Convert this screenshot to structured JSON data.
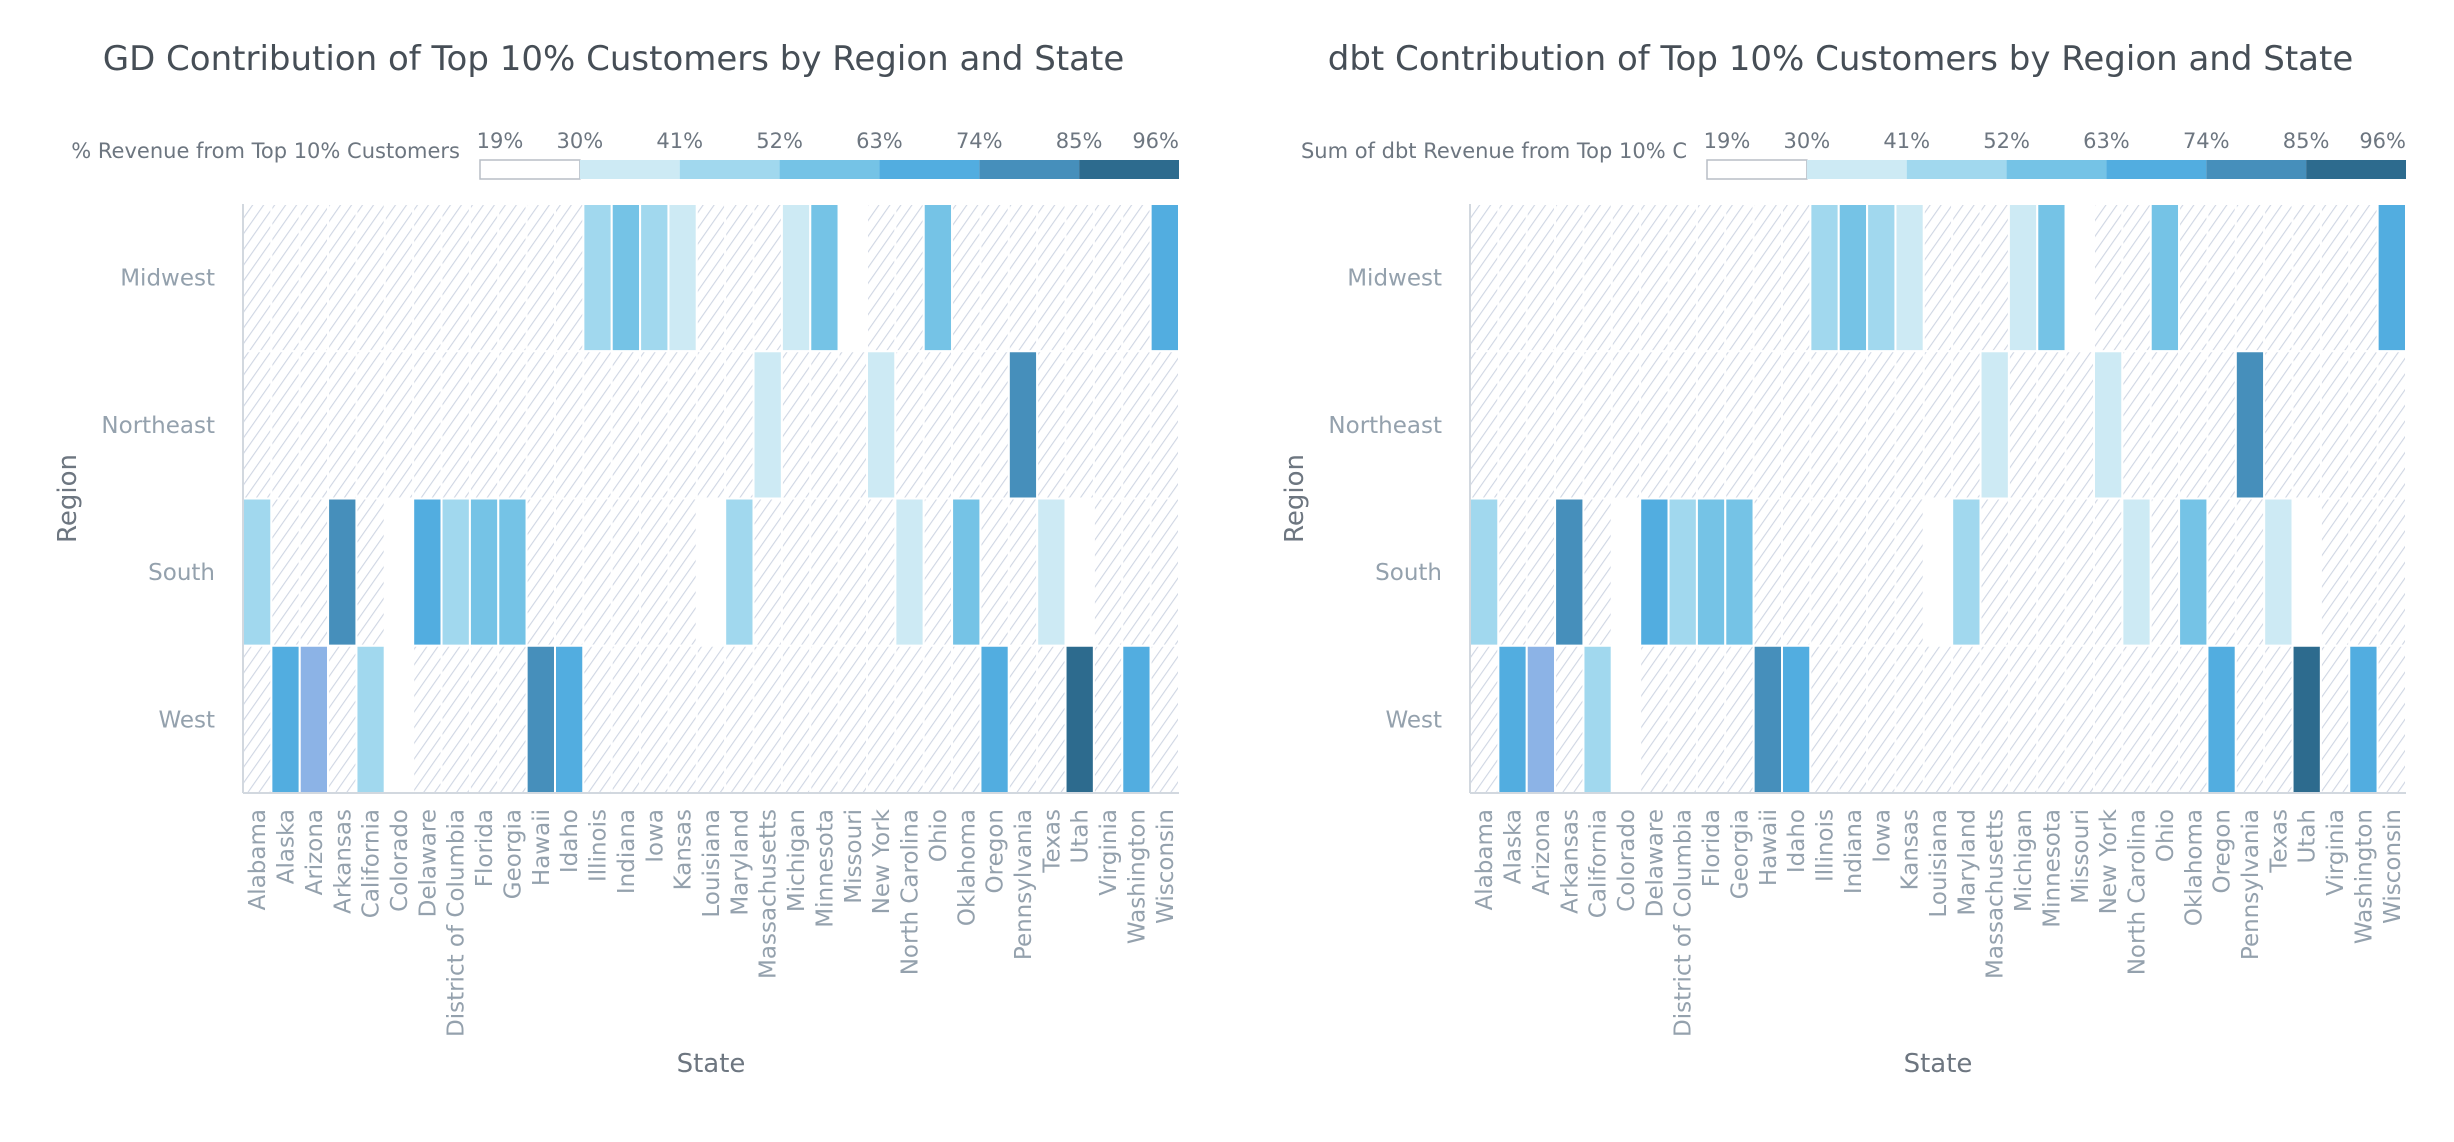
{
  "chart_data": [
    {
      "type": "heatmap",
      "title": "GD Contribution of Top 10% Customers by Region and State",
      "legend_title": "% Revenue from Top 10% Customers",
      "legend_ticks": [
        "19%",
        "30%",
        "41%",
        "52%",
        "63%",
        "74%",
        "85%",
        "96%"
      ],
      "legend_colors": [
        "#ffffff",
        "#cdeaf4",
        "#a1d8ee",
        "#75c3e6",
        "#52ade0",
        "#468fbb",
        "#2d6b8e"
      ],
      "xlabel": "State",
      "ylabel": "Region",
      "x_categories": [
        "Alabama",
        "Alaska",
        "Arizona",
        "Arkansas",
        "California",
        "Colorado",
        "Delaware",
        "District of Columbia",
        "Florida",
        "Georgia",
        "Hawaii",
        "Idaho",
        "Illinois",
        "Indiana",
        "Iowa",
        "Kansas",
        "Louisiana",
        "Maryland",
        "Massachusetts",
        "Michigan",
        "Minnesota",
        "Missouri",
        "New York",
        "North Carolina",
        "Ohio",
        "Oklahoma",
        "Oregon",
        "Pennsylvania",
        "Texas",
        "Utah",
        "Virginia",
        "Washington",
        "Wisconsin"
      ],
      "y_categories": [
        "Midwest",
        "Northeast",
        "South",
        "West"
      ],
      "values": [
        [
          null,
          null,
          null,
          null,
          null,
          null,
          null,
          null,
          null,
          null,
          null,
          null,
          45,
          55,
          45,
          33,
          null,
          null,
          null,
          35,
          55,
          20,
          null,
          null,
          58,
          null,
          null,
          null,
          null,
          null,
          null,
          null,
          65
        ],
        [
          null,
          null,
          null,
          null,
          null,
          null,
          null,
          null,
          null,
          null,
          null,
          null,
          null,
          null,
          null,
          null,
          null,
          null,
          33,
          null,
          null,
          null,
          33,
          null,
          null,
          null,
          null,
          80,
          null,
          null,
          null,
          null,
          null
        ],
        [
          45,
          null,
          null,
          80,
          null,
          20,
          66,
          45,
          57,
          57,
          null,
          null,
          null,
          null,
          null,
          null,
          20,
          45,
          null,
          null,
          null,
          null,
          null,
          35,
          null,
          57,
          null,
          null,
          35,
          20,
          null,
          null,
          null
        ],
        [
          null,
          66,
          66,
          null,
          45,
          20,
          null,
          null,
          null,
          null,
          80,
          66,
          null,
          null,
          null,
          null,
          null,
          null,
          null,
          null,
          null,
          null,
          null,
          null,
          null,
          null,
          66,
          null,
          null,
          95,
          null,
          66,
          null
        ]
      ],
      "special_colors": [
        {
          "state": "Arizona",
          "region": "West",
          "color": "#8cb3e6"
        }
      ],
      "empty_pattern": "hatched"
    },
    {
      "type": "heatmap",
      "title": "dbt Contribution of Top 10% Customers by Region and State",
      "legend_title": "Sum of dbt Revenue from Top 10% C",
      "legend_ticks": [
        "19%",
        "30%",
        "41%",
        "52%",
        "63%",
        "74%",
        "85%",
        "96%"
      ],
      "legend_colors": [
        "#ffffff",
        "#cdeaf4",
        "#a1d8ee",
        "#75c3e6",
        "#52ade0",
        "#468fbb",
        "#2d6b8e"
      ],
      "xlabel": "State",
      "ylabel": "Region",
      "x_categories": [
        "Alabama",
        "Alaska",
        "Arizona",
        "Arkansas",
        "California",
        "Colorado",
        "Delaware",
        "District of Columbia",
        "Florida",
        "Georgia",
        "Hawaii",
        "Idaho",
        "Illinois",
        "Indiana",
        "Iowa",
        "Kansas",
        "Louisiana",
        "Maryland",
        "Massachusetts",
        "Michigan",
        "Minnesota",
        "Missouri",
        "New York",
        "North Carolina",
        "Ohio",
        "Oklahoma",
        "Oregon",
        "Pennsylvania",
        "Texas",
        "Utah",
        "Virginia",
        "Washington",
        "Wisconsin"
      ],
      "y_categories": [
        "Midwest",
        "Northeast",
        "South",
        "West"
      ],
      "values": [
        [
          null,
          null,
          null,
          null,
          null,
          null,
          null,
          null,
          null,
          null,
          null,
          null,
          45,
          55,
          45,
          33,
          null,
          null,
          null,
          35,
          55,
          20,
          null,
          null,
          58,
          null,
          null,
          null,
          null,
          null,
          null,
          null,
          65
        ],
        [
          null,
          null,
          null,
          null,
          null,
          null,
          null,
          null,
          null,
          null,
          null,
          null,
          null,
          null,
          null,
          null,
          null,
          null,
          33,
          null,
          null,
          null,
          33,
          null,
          null,
          null,
          null,
          80,
          null,
          null,
          null,
          null,
          null
        ],
        [
          45,
          null,
          null,
          80,
          null,
          20,
          66,
          45,
          57,
          57,
          null,
          null,
          null,
          null,
          null,
          null,
          20,
          45,
          null,
          null,
          null,
          null,
          null,
          35,
          null,
          57,
          null,
          null,
          35,
          20,
          null,
          null,
          null
        ],
        [
          null,
          66,
          66,
          null,
          45,
          20,
          null,
          null,
          null,
          null,
          80,
          66,
          null,
          null,
          null,
          null,
          null,
          null,
          null,
          null,
          null,
          null,
          null,
          null,
          null,
          null,
          66,
          null,
          null,
          95,
          null,
          66,
          null
        ]
      ],
      "special_colors": [
        {
          "state": "Arizona",
          "region": "West",
          "color": "#8cb3e6"
        }
      ],
      "empty_pattern": "hatched"
    }
  ]
}
